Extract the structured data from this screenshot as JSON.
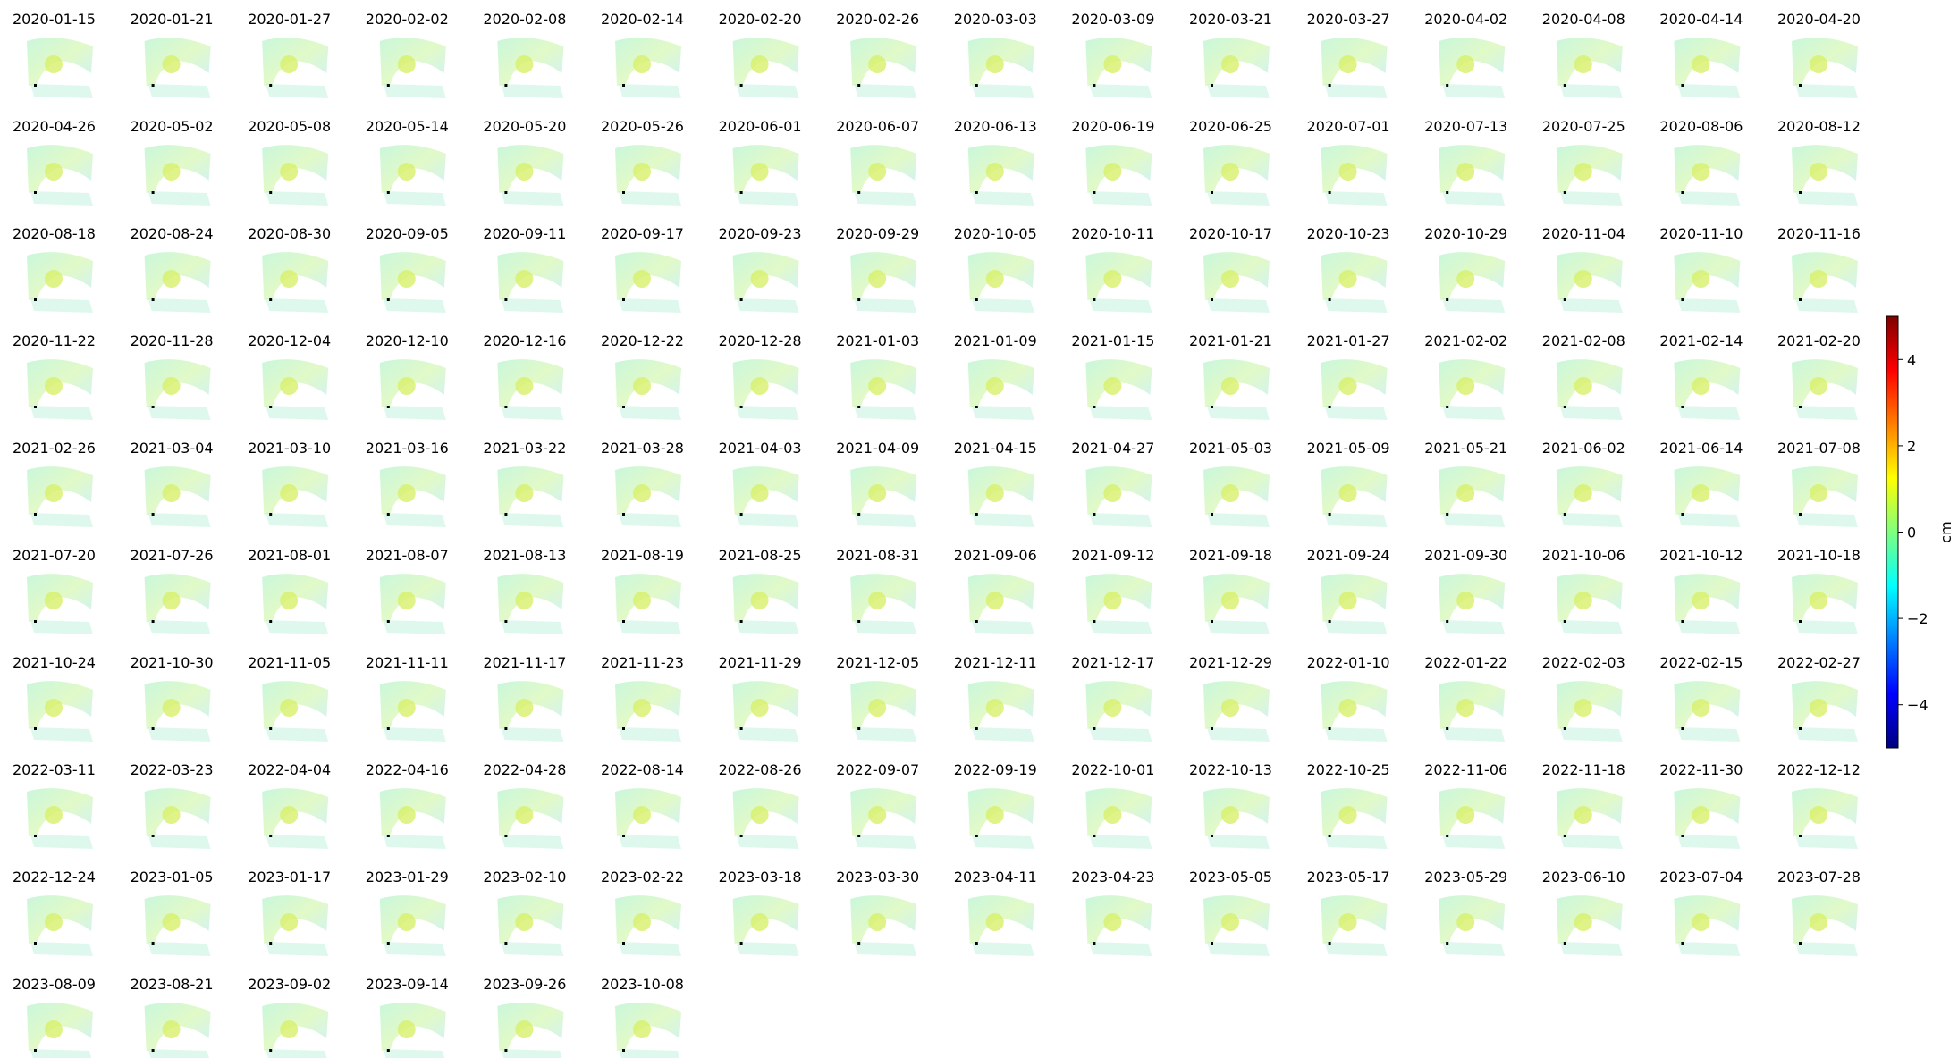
{
  "chart_data": {
    "type": "image-grid",
    "panel_titles": [
      "2020-01-15",
      "2020-01-21",
      "2020-01-27",
      "2020-02-02",
      "2020-02-08",
      "2020-02-14",
      "2020-02-20",
      "2020-02-26",
      "2020-03-03",
      "2020-03-09",
      "2020-03-21",
      "2020-03-27",
      "2020-04-02",
      "2020-04-08",
      "2020-04-14",
      "2020-04-20",
      "2020-04-26",
      "2020-05-02",
      "2020-05-08",
      "2020-05-14",
      "2020-05-20",
      "2020-05-26",
      "2020-06-01",
      "2020-06-07",
      "2020-06-13",
      "2020-06-19",
      "2020-06-25",
      "2020-07-01",
      "2020-07-13",
      "2020-07-25",
      "2020-08-06",
      "2020-08-12",
      "2020-08-18",
      "2020-08-24",
      "2020-08-30",
      "2020-09-05",
      "2020-09-11",
      "2020-09-17",
      "2020-09-23",
      "2020-09-29",
      "2020-10-05",
      "2020-10-11",
      "2020-10-17",
      "2020-10-23",
      "2020-10-29",
      "2020-11-04",
      "2020-11-10",
      "2020-11-16",
      "2020-11-22",
      "2020-11-28",
      "2020-12-04",
      "2020-12-10",
      "2020-12-16",
      "2020-12-22",
      "2020-12-28",
      "2021-01-03",
      "2021-01-09",
      "2021-01-15",
      "2021-01-21",
      "2021-01-27",
      "2021-02-02",
      "2021-02-08",
      "2021-02-14",
      "2021-02-20",
      "2021-02-26",
      "2021-03-04",
      "2021-03-10",
      "2021-03-16",
      "2021-03-22",
      "2021-03-28",
      "2021-04-03",
      "2021-04-09",
      "2021-04-15",
      "2021-04-27",
      "2021-05-03",
      "2021-05-09",
      "2021-05-21",
      "2021-06-02",
      "2021-06-14",
      "2021-07-08",
      "2021-07-20",
      "2021-07-26",
      "2021-08-01",
      "2021-08-07",
      "2021-08-13",
      "2021-08-19",
      "2021-08-25",
      "2021-08-31",
      "2021-09-06",
      "2021-09-12",
      "2021-09-18",
      "2021-09-24",
      "2021-09-30",
      "2021-10-06",
      "2021-10-12",
      "2021-10-18",
      "2021-10-24",
      "2021-10-30",
      "2021-11-05",
      "2021-11-11",
      "2021-11-17",
      "2021-11-23",
      "2021-11-29",
      "2021-12-05",
      "2021-12-11",
      "2021-12-17",
      "2021-12-29",
      "2022-01-10",
      "2022-01-22",
      "2022-02-03",
      "2022-02-15",
      "2022-02-27",
      "2022-03-11",
      "2022-03-23",
      "2022-04-04",
      "2022-04-16",
      "2022-04-28",
      "2022-08-14",
      "2022-08-26",
      "2022-09-07",
      "2022-09-19",
      "2022-10-01",
      "2022-10-13",
      "2022-10-25",
      "2022-11-06",
      "2022-11-18",
      "2022-11-30",
      "2022-12-12",
      "2022-12-24",
      "2023-01-05",
      "2023-01-17",
      "2023-01-29",
      "2023-02-10",
      "2023-02-22",
      "2023-03-18",
      "2023-03-30",
      "2023-04-11",
      "2023-04-23",
      "2023-05-05",
      "2023-05-17",
      "2023-05-29",
      "2023-06-10",
      "2023-07-04",
      "2023-07-28",
      "2023-08-09",
      "2023-08-21",
      "2023-09-02",
      "2023-09-14",
      "2023-09-26",
      "2023-10-08"
    ],
    "colorbar": {
      "label": "cm",
      "colormap": "jet",
      "lim": [
        -5,
        5
      ],
      "ticks": [
        {
          "value": -4,
          "label": "−4"
        },
        {
          "value": -2,
          "label": "−2"
        },
        0,
        2,
        4
      ]
    }
  }
}
